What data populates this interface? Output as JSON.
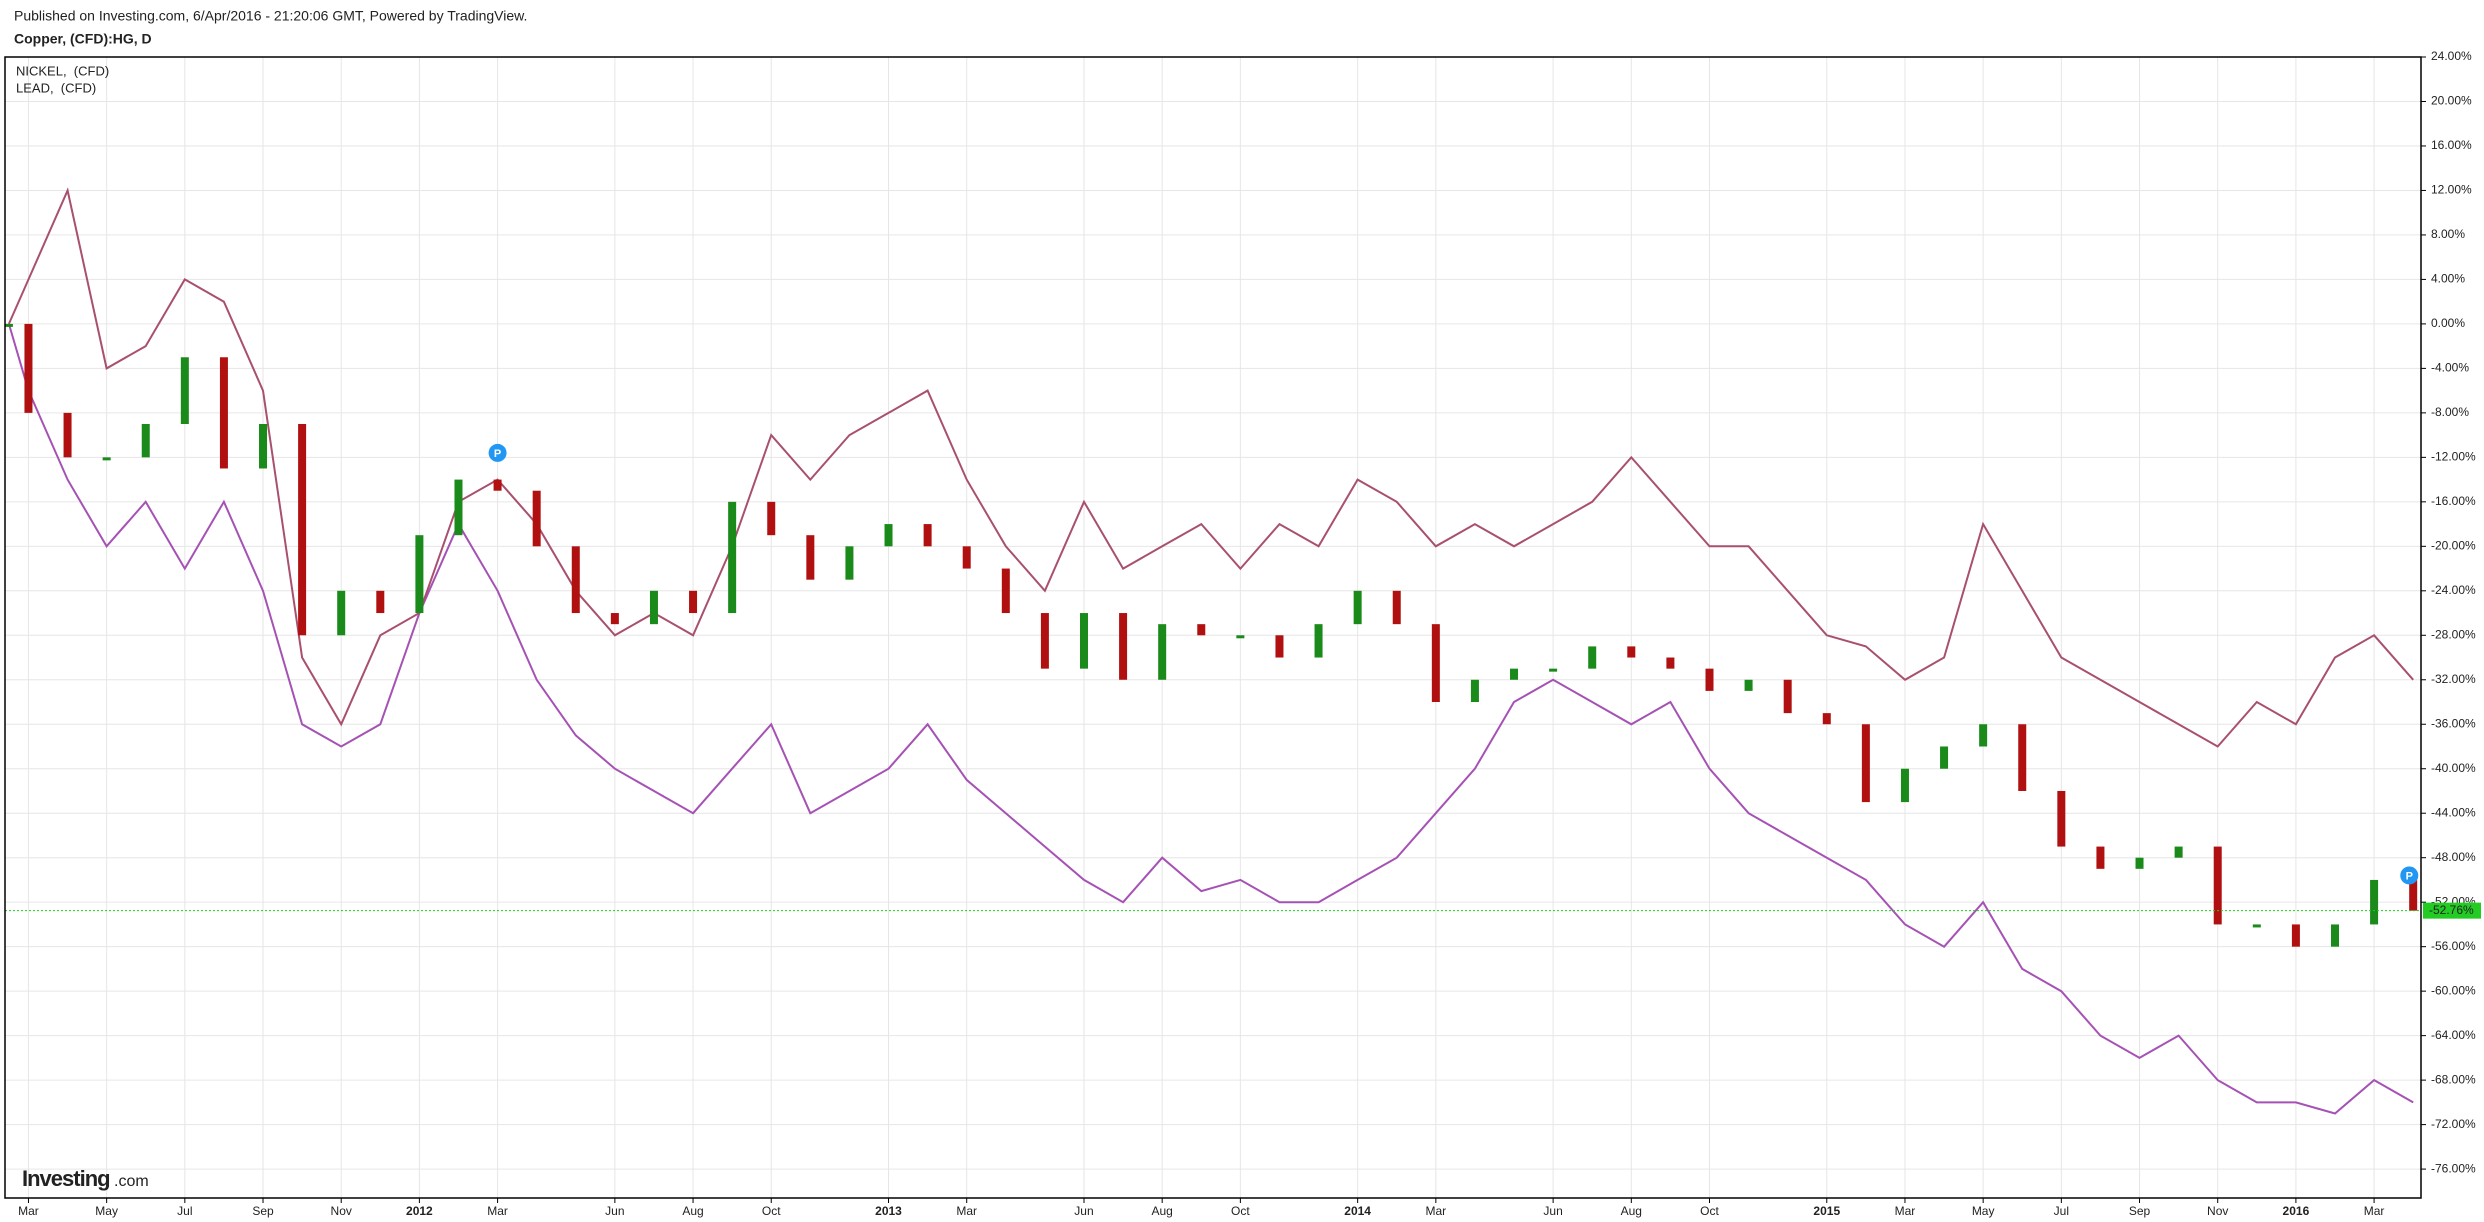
{
  "header": "Published on Investing.com, 6/Apr/2016 - 21:20:06 GMT, Powered by TradingView.",
  "logo": {
    "bold": "Investing",
    "suffix": ".com"
  },
  "chart_data": {
    "type": "line",
    "title": "Copper, (CFD):HG, D",
    "x": [
      1.5,
      2,
      3,
      4,
      5,
      6,
      7,
      8,
      9,
      10,
      11,
      12,
      13,
      14,
      15,
      16,
      17,
      18,
      19,
      20,
      21,
      22,
      23,
      24,
      25,
      26,
      27,
      28,
      29,
      30,
      31,
      32,
      33,
      34,
      35,
      36,
      37,
      38,
      39,
      40,
      41,
      42,
      43,
      44,
      45,
      46,
      47,
      48,
      49,
      50,
      51,
      52,
      53,
      54,
      55,
      56,
      57,
      58,
      59,
      60,
      61,
      62,
      63
    ],
    "series": [
      {
        "name": "NICKEL,  (CFD)",
        "color": "#a552b4",
        "values": [
          0,
          -6,
          -14,
          -20,
          -16,
          -22,
          -16,
          -24,
          -36,
          -38,
          -36,
          -26,
          -18,
          -24,
          -32,
          -37,
          -40,
          -42,
          -44,
          -40,
          -36,
          -44,
          -42,
          -40,
          -36,
          -41,
          -44,
          -47,
          -50,
          -52,
          -48,
          -51,
          -50,
          -52,
          -52,
          -50,
          -48,
          -44,
          -40,
          -34,
          -32,
          -34,
          -36,
          -34,
          -40,
          -44,
          -46,
          -48,
          -50,
          -54,
          -56,
          -52,
          -58,
          -60,
          -64,
          -66,
          -64,
          -68,
          -70,
          -70,
          -71,
          -68,
          -70
        ]
      },
      {
        "name": "LEAD,  (CFD)",
        "color": "#a8506e",
        "values": [
          0,
          4,
          12,
          -4,
          -2,
          4,
          2,
          -6,
          -30,
          -36,
          -28,
          -26,
          -16,
          -14,
          -18,
          -24,
          -28,
          -26,
          -28,
          -20,
          -10,
          -14,
          -10,
          -8,
          -6,
          -14,
          -20,
          -24,
          -16,
          -22,
          -20,
          -18,
          -22,
          -18,
          -20,
          -14,
          -16,
          -20,
          -18,
          -20,
          -18,
          -16,
          -12,
          -16,
          -20,
          -20,
          -24,
          -28,
          -29,
          -32,
          -30,
          -18,
          -24,
          -30,
          -32,
          -34,
          -36,
          -38,
          -34,
          -36,
          -30,
          -28,
          -32
        ]
      }
    ],
    "copper": {
      "up_color": "#1a8a1a",
      "down_color": "#b01010",
      "last_color": "#22cc22",
      "values": [
        0,
        -8,
        -12,
        -12,
        -9,
        -3,
        -13,
        -9,
        -28,
        -24,
        -26,
        -19,
        -14,
        -15,
        -20,
        -26,
        -27,
        -24,
        -26,
        -16,
        -19,
        -23,
        -20,
        -18,
        -20,
        -22,
        -26,
        -31,
        -26,
        -32,
        -27,
        -28,
        -28,
        -30,
        -27,
        -24,
        -27,
        -34,
        -32,
        -31,
        -31,
        -29,
        -30,
        -31,
        -33,
        -32,
        -35,
        -36,
        -43,
        -40,
        -38,
        -36,
        -42,
        -47,
        -49,
        -48,
        -47,
        -54,
        -54,
        -56,
        -54,
        -50,
        -52.76
      ],
      "last_value_label": "-52.76%"
    },
    "annotations": [
      {
        "text": "P",
        "x": 14,
        "y": -11.6
      },
      {
        "text": "P",
        "x": 62.9,
        "y": -49.6
      }
    ],
    "xlim": [
      1.4,
      63.2
    ],
    "xticks": [
      {
        "value": 2,
        "label": "Mar"
      },
      {
        "value": 4,
        "label": "May"
      },
      {
        "value": 6,
        "label": "Jul"
      },
      {
        "value": 8,
        "label": "Sep"
      },
      {
        "value": 10,
        "label": "Nov"
      },
      {
        "value": 12,
        "label": "2012"
      },
      {
        "value": 14,
        "label": "Mar"
      },
      {
        "value": 17,
        "label": "Jun"
      },
      {
        "value": 19,
        "label": "Aug"
      },
      {
        "value": 21,
        "label": "Oct"
      },
      {
        "value": 24,
        "label": "2013"
      },
      {
        "value": 26,
        "label": "Mar"
      },
      {
        "value": 29,
        "label": "Jun"
      },
      {
        "value": 31,
        "label": "Aug"
      },
      {
        "value": 33,
        "label": "Oct"
      },
      {
        "value": 36,
        "label": "2014"
      },
      {
        "value": 38,
        "label": "Mar"
      },
      {
        "value": 41,
        "label": "Jun"
      },
      {
        "value": 43,
        "label": "Aug"
      },
      {
        "value": 45,
        "label": "Oct"
      },
      {
        "value": 48,
        "label": "2015"
      },
      {
        "value": 50,
        "label": "Mar"
      },
      {
        "value": 52,
        "label": "May"
      },
      {
        "value": 54,
        "label": "Jul"
      },
      {
        "value": 56,
        "label": "Sep"
      },
      {
        "value": 58,
        "label": "Nov"
      },
      {
        "value": 60,
        "label": "2016"
      },
      {
        "value": 62,
        "label": "Mar"
      }
    ],
    "ylim": [
      -78.6,
      24
    ],
    "yticks": [
      {
        "value": 24,
        "label": "24.00%"
      },
      {
        "value": 20,
        "label": "20.00%"
      },
      {
        "value": 16,
        "label": "16.00%"
      },
      {
        "value": 12,
        "label": "12.00%"
      },
      {
        "value": 8,
        "label": "8.00%"
      },
      {
        "value": 4,
        "label": "4.00%"
      },
      {
        "value": 0,
        "label": "0.00%"
      },
      {
        "value": -4,
        "label": "-4.00%"
      },
      {
        "value": -8,
        "label": "-8.00%"
      },
      {
        "value": -12,
        "label": "-12.00%"
      },
      {
        "value": -16,
        "label": "-16.00%"
      },
      {
        "value": -20,
        "label": "-20.00%"
      },
      {
        "value": -24,
        "label": "-24.00%"
      },
      {
        "value": -28,
        "label": "-28.00%"
      },
      {
        "value": -32,
        "label": "-32.00%"
      },
      {
        "value": -36,
        "label": "-36.00%"
      },
      {
        "value": -40,
        "label": "-40.00%"
      },
      {
        "value": -44,
        "label": "-44.00%"
      },
      {
        "value": -48,
        "label": "-48.00%"
      },
      {
        "value": -52,
        "label": "-52.00%"
      },
      {
        "value": -56,
        "label": "-56.00%"
      },
      {
        "value": -60,
        "label": "-60.00%"
      },
      {
        "value": -64,
        "label": "-64.00%"
      },
      {
        "value": -68,
        "label": "-68.00%"
      },
      {
        "value": -72,
        "label": "-72.00%"
      },
      {
        "value": -76,
        "label": "-76.00%"
      }
    ],
    "grid": true,
    "legend": "top-left"
  }
}
